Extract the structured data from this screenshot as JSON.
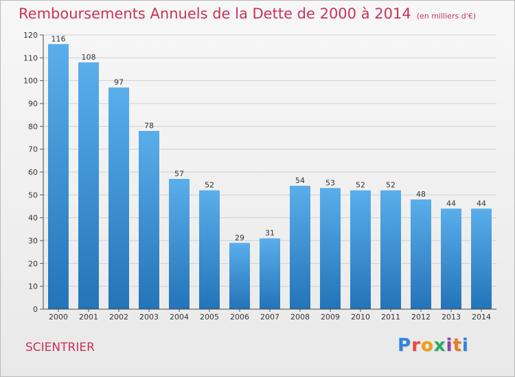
{
  "header": {
    "title": "Remboursements Annuels de la Dette de 2000 à 2014",
    "subtitle": "(en milliers d'€)"
  },
  "footer": {
    "place": "SCIENTRIER",
    "logo": "Proxiti",
    "logo_colors": [
      "#2e86de",
      "#e74c3c",
      "#f39c12",
      "#27ae60",
      "#8e44ad",
      "#e67e22",
      "#2e86de"
    ]
  },
  "colors": {
    "bar_light": "#5aaeea",
    "bar_dark": "#2374b8",
    "title": "#c8325a",
    "grid": "#d0d0d0"
  },
  "chart_data": {
    "type": "bar",
    "title": "Remboursements Annuels de la Dette de 2000 à 2014",
    "subtitle": "(en milliers d'€)",
    "categories": [
      "2000",
      "2001",
      "2002",
      "2003",
      "2004",
      "2005",
      "2006",
      "2007",
      "2008",
      "2009",
      "2010",
      "2011",
      "2012",
      "2013",
      "2014"
    ],
    "values": [
      116,
      108,
      97,
      78,
      57,
      52,
      29,
      31,
      54,
      53,
      52,
      52,
      48,
      44,
      44
    ],
    "ylim": [
      0,
      120
    ],
    "yticks": [
      0,
      10,
      20,
      30,
      40,
      50,
      60,
      70,
      80,
      90,
      100,
      110,
      120
    ],
    "grid": true,
    "data_labels": true
  }
}
